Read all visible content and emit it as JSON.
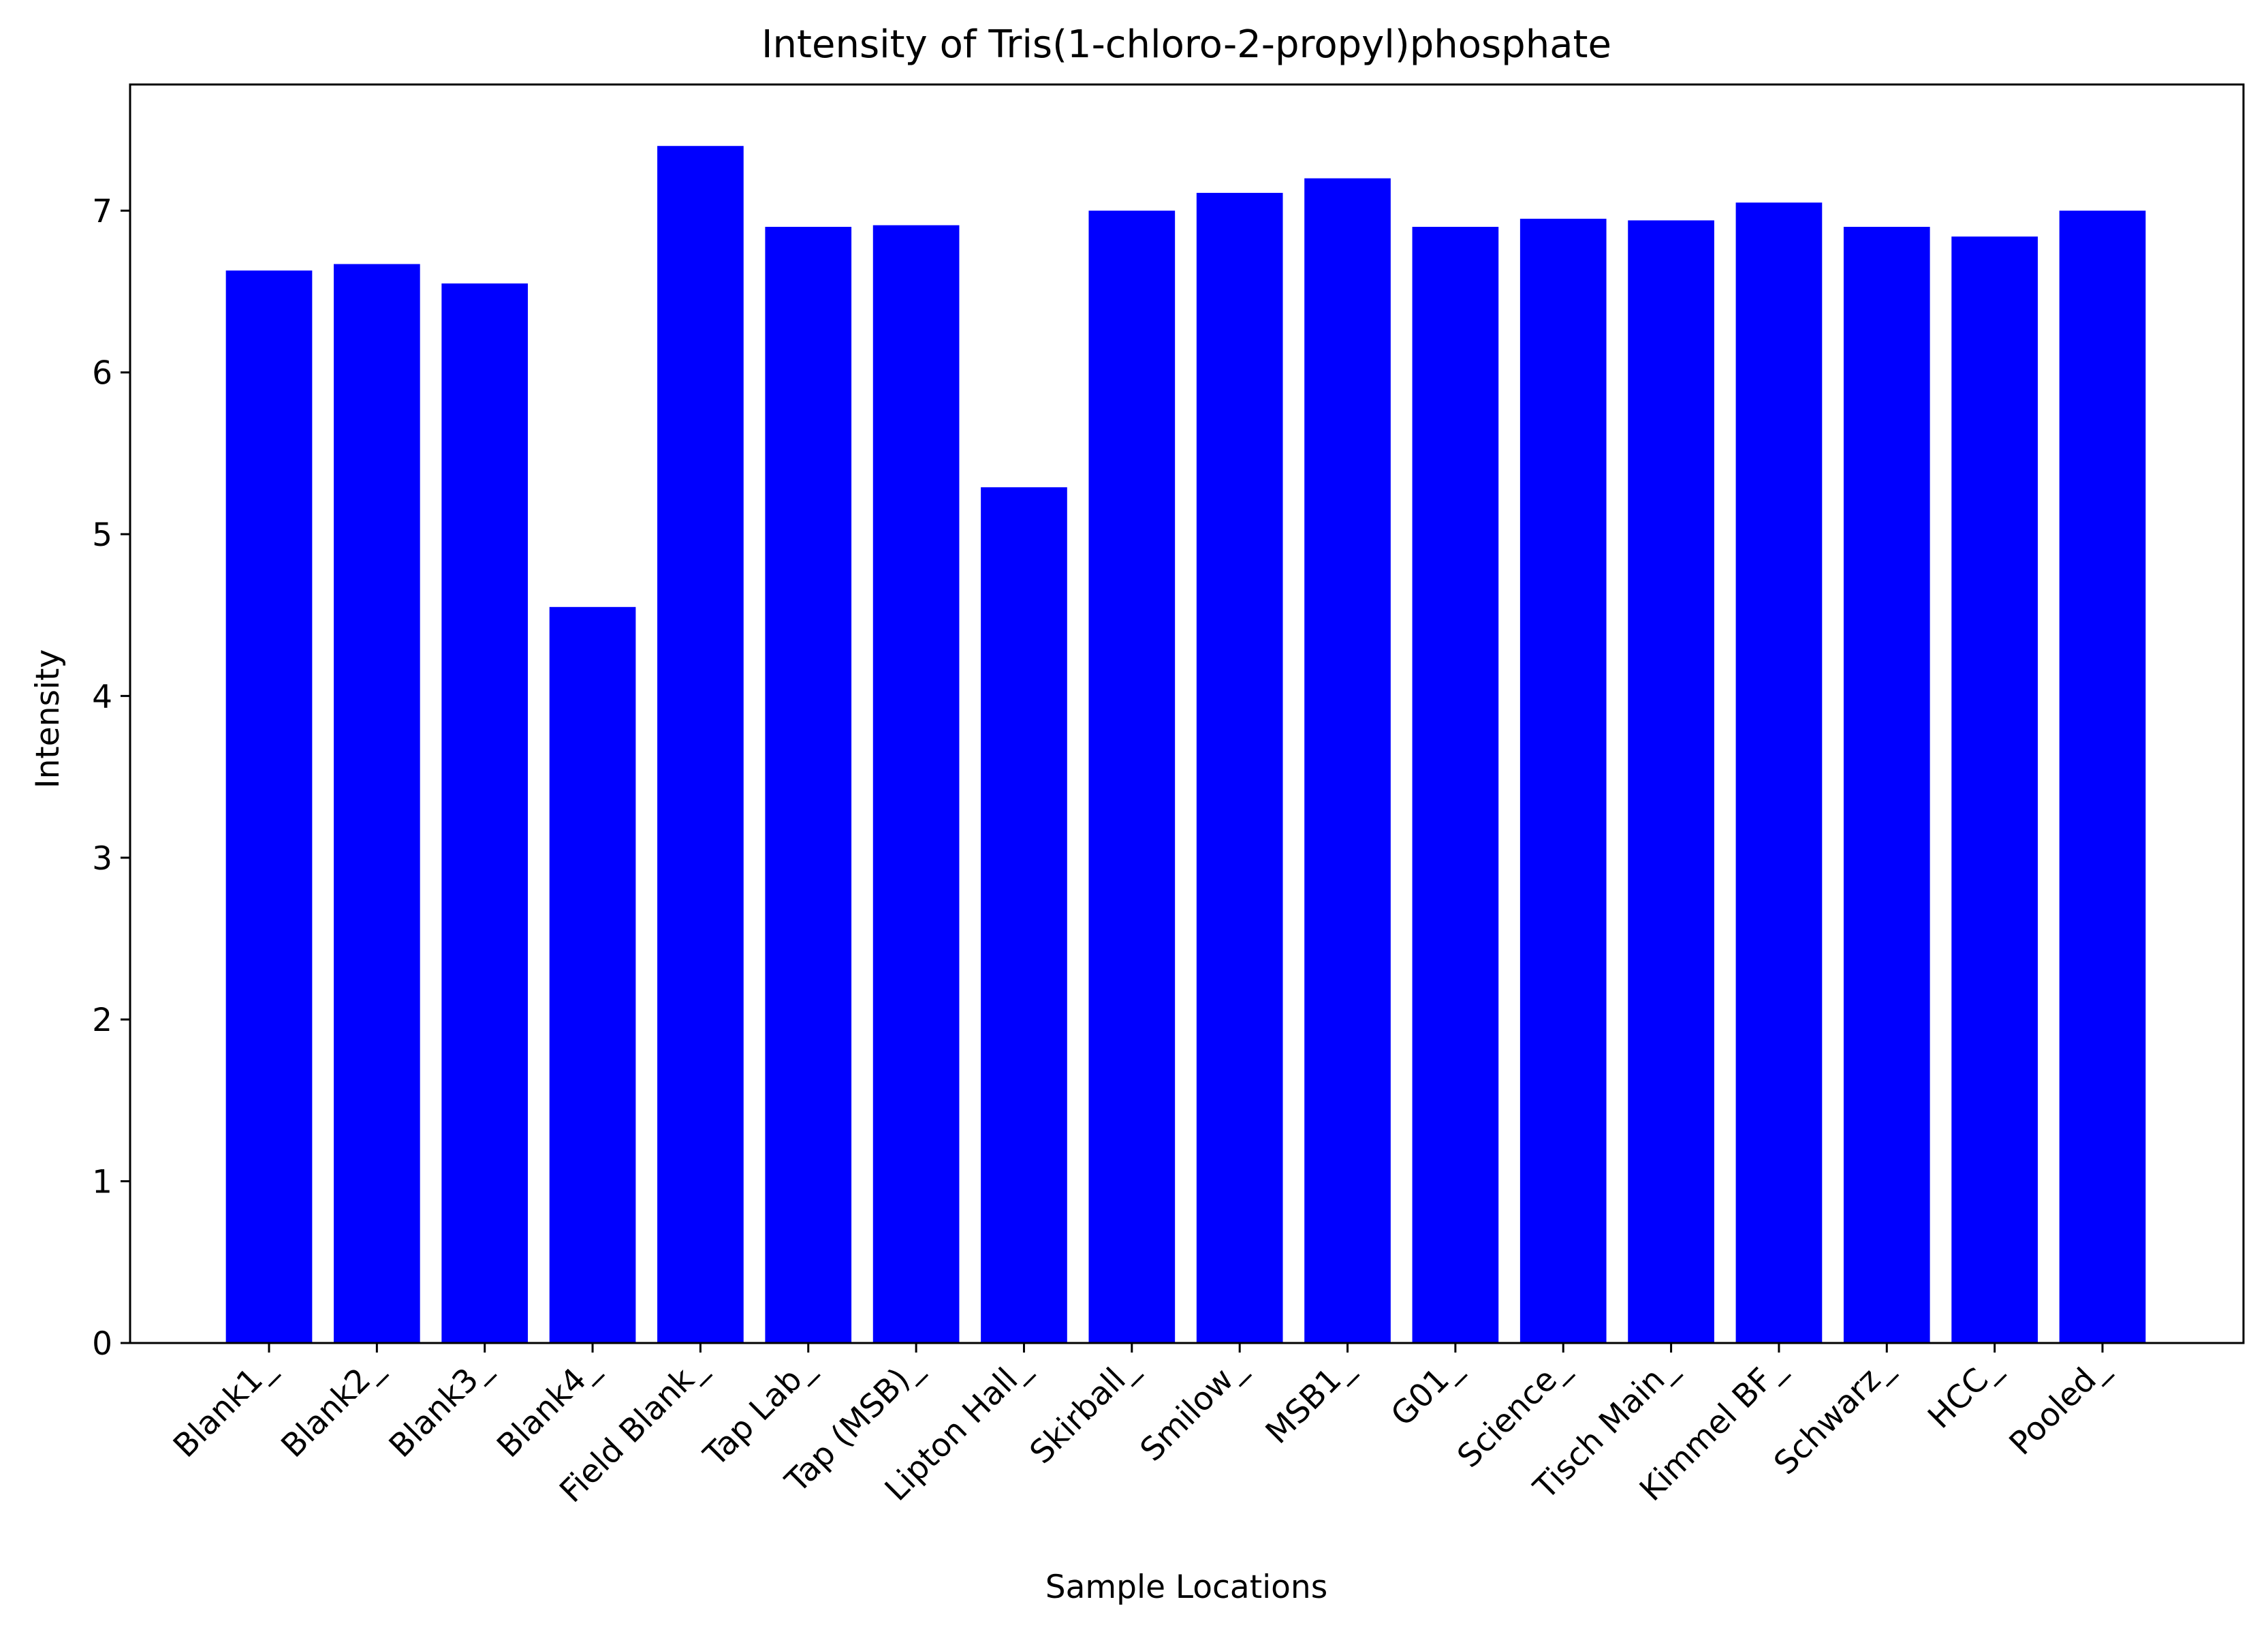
{
  "chart_data": {
    "type": "bar",
    "title": "Intensity of Tris(1-chloro-2-propyl)phosphate",
    "xlabel": "Sample Locations",
    "ylabel": "Intensity",
    "categories": [
      "Blank1_",
      "Blank2_",
      "Blank3_",
      "Blank4_",
      "Field Blank_",
      "Tap Lab_",
      "Tap (MSB)_",
      "Lipton Hall_",
      "Skirball_",
      "Smilow_",
      "MSB1_",
      "G01_",
      "Science_",
      "Tisch Main_",
      "Kimmel BF_",
      "Schwarz_",
      "HCC_",
      "Pooled_"
    ],
    "values": [
      6.63,
      6.67,
      6.55,
      4.55,
      7.4,
      6.9,
      6.91,
      5.29,
      7.0,
      7.11,
      7.2,
      6.9,
      6.95,
      6.94,
      7.05,
      6.9,
      6.84,
      7.0
    ],
    "ylim": [
      0,
      7.78
    ],
    "yticks": [
      0,
      1,
      2,
      3,
      4,
      5,
      6,
      7
    ],
    "grid": false,
    "legend": "none",
    "bar_color": "#0000ff"
  }
}
